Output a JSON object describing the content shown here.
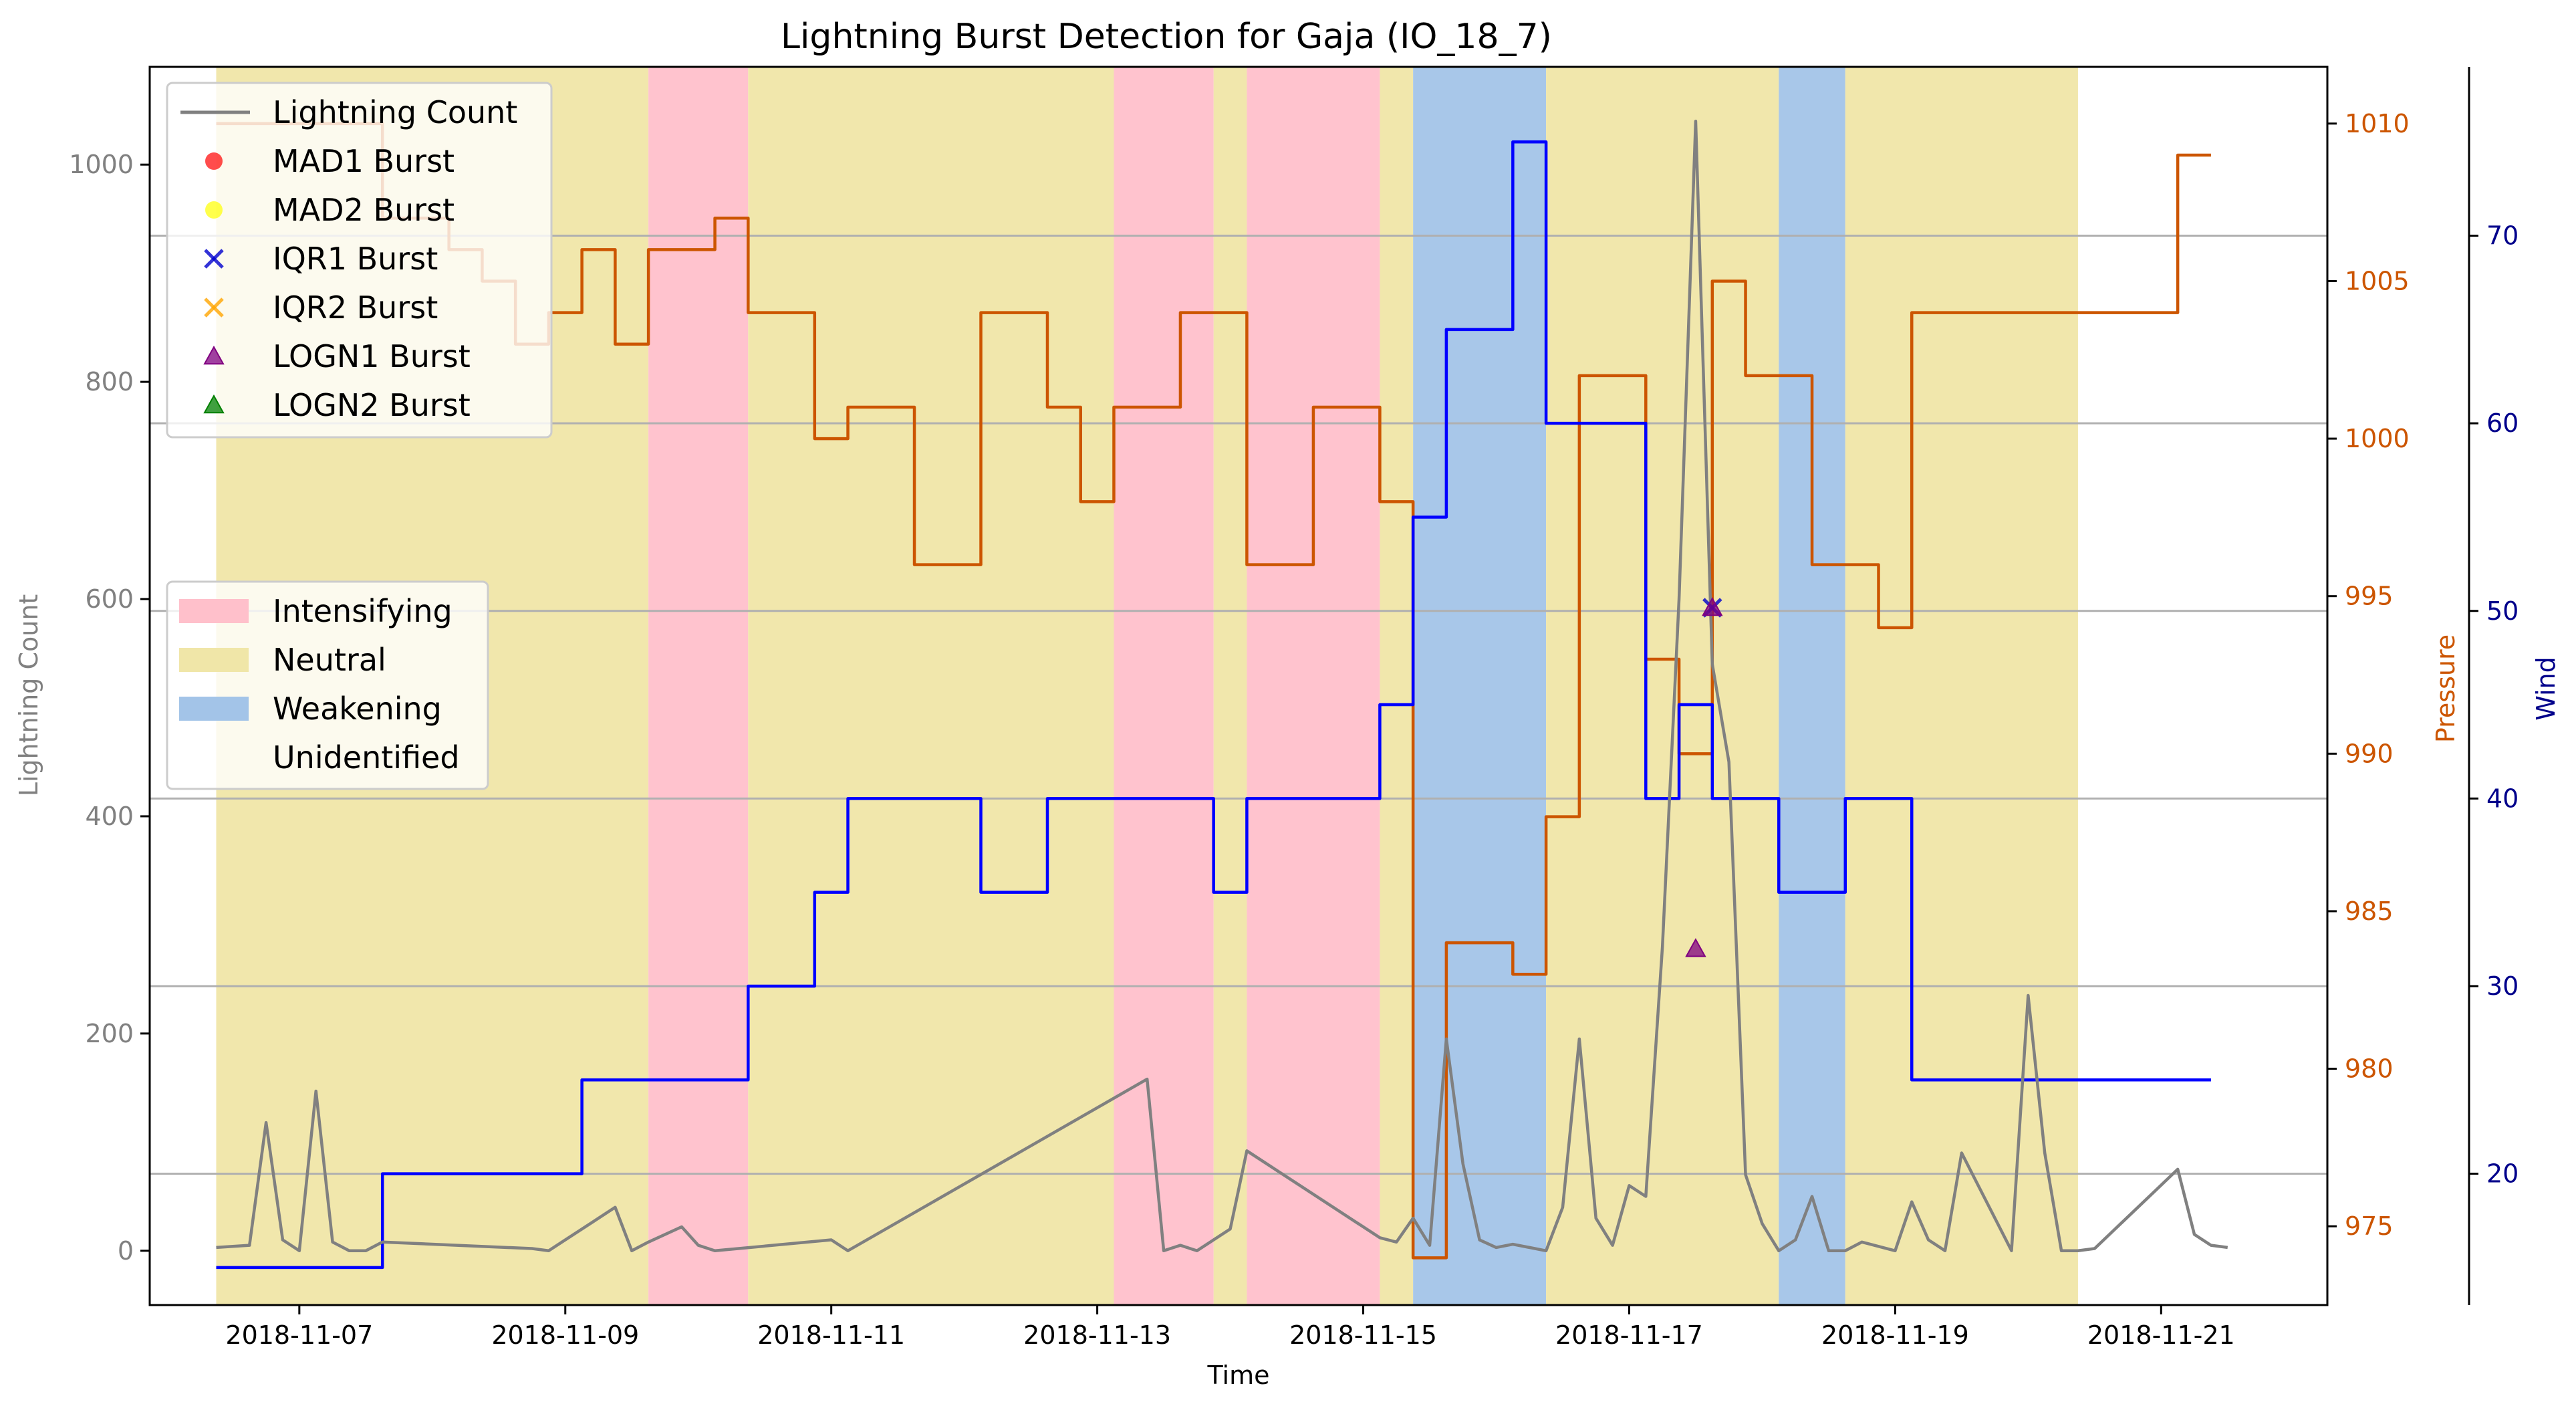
{
  "chart_data": {
    "type": "line",
    "title": "Lightning Burst Detection for Gaja (IO_18_7)",
    "xlabel": "Time",
    "ylabel_left": "Lightning Count",
    "ylabel_right1": "Pressure",
    "ylabel_right2": "Wind",
    "x_range": [
      "2018-11-05 21:00",
      "2018-11-22 06:00"
    ],
    "x_ticks": [
      "2018-11-07",
      "2018-11-09",
      "2018-11-11",
      "2018-11-13",
      "2018-11-15",
      "2018-11-17",
      "2018-11-19",
      "2018-11-21"
    ],
    "ylim_left": [
      -50,
      1090
    ],
    "yticks_left": [
      0,
      200,
      400,
      600,
      800,
      1000
    ],
    "ylim_pressure": [
      972.5,
      1011.8
    ],
    "yticks_pressure": [
      975,
      980,
      985,
      990,
      995,
      1000,
      1005,
      1010
    ],
    "ylim_wind": [
      13.0,
      79.0
    ],
    "yticks_wind": [
      20,
      30,
      40,
      50,
      60,
      70
    ],
    "grid": "horizontal lines at wind ticks",
    "colors": {
      "lightning": "#808080",
      "pressure": "#cc5500",
      "wind": "#0000ff",
      "wind_axis": "#00008b",
      "intensifying": "#ffc0cb",
      "neutral": "#f0e6a8",
      "weakening": "#a3c4e8",
      "mad1": "#ff0000",
      "mad2": "#ffff00",
      "iqr1": "#0000cd",
      "iqr2": "#ffa500",
      "logn1": "#800080",
      "logn2": "#008000"
    },
    "legend_upper": {
      "position": "upper-left",
      "entries": [
        "Lightning Count",
        "MAD1 Burst",
        "MAD2 Burst",
        "IQR1 Burst",
        "IQR2 Burst",
        "LOGN1 Burst",
        "LOGN2 Burst"
      ]
    },
    "legend_lower": {
      "position": "center-left",
      "entries": [
        "Intensifying",
        "Neutral",
        "Weakening",
        "Unidentified"
      ]
    },
    "phases": [
      {
        "phase": "Neutral",
        "start": "2018-11-06 09:00",
        "end": "2018-11-09 15:00"
      },
      {
        "phase": "Intensifying",
        "start": "2018-11-09 15:00",
        "end": "2018-11-10 09:00"
      },
      {
        "phase": "Neutral",
        "start": "2018-11-10 09:00",
        "end": "2018-11-13 03:00"
      },
      {
        "phase": "Intensifying",
        "start": "2018-11-13 03:00",
        "end": "2018-11-13 21:00"
      },
      {
        "phase": "Neutral",
        "start": "2018-11-13 21:00",
        "end": "2018-11-14 03:00"
      },
      {
        "phase": "Intensifying",
        "start": "2018-11-14 03:00",
        "end": "2018-11-15 03:00"
      },
      {
        "phase": "Neutral",
        "start": "2018-11-15 03:00",
        "end": "2018-11-15 09:00"
      },
      {
        "phase": "Weakening",
        "start": "2018-11-15 09:00",
        "end": "2018-11-16 09:00"
      },
      {
        "phase": "Neutral",
        "start": "2018-11-16 09:00",
        "end": "2018-11-18 03:00"
      },
      {
        "phase": "Weakening",
        "start": "2018-11-18 03:00",
        "end": "2018-11-18 15:00"
      },
      {
        "phase": "Neutral",
        "start": "2018-11-18 15:00",
        "end": "2018-11-20 09:00"
      }
    ],
    "series": [
      {
        "name": "Pressure",
        "axis": "pressure",
        "step": true,
        "x": [
          "2018-11-06 09:00",
          "2018-11-07 15:00",
          "2018-11-08 03:00",
          "2018-11-08 09:00",
          "2018-11-08 15:00",
          "2018-11-08 21:00",
          "2018-11-09 03:00",
          "2018-11-09 09:00",
          "2018-11-09 15:00",
          "2018-11-10 03:00",
          "2018-11-10 09:00",
          "2018-11-10 21:00",
          "2018-11-11 03:00",
          "2018-11-11 15:00",
          "2018-11-12 03:00",
          "2018-11-12 15:00",
          "2018-11-12 21:00",
          "2018-11-13 03:00",
          "2018-11-13 15:00",
          "2018-11-14 03:00",
          "2018-11-14 15:00",
          "2018-11-15 03:00",
          "2018-11-15 09:00",
          "2018-11-15 15:00",
          "2018-11-16 03:00",
          "2018-11-16 09:00",
          "2018-11-16 15:00",
          "2018-11-17 03:00",
          "2018-11-17 09:00",
          "2018-11-17 15:00",
          "2018-11-17 21:00",
          "2018-11-18 09:00",
          "2018-11-18 21:00",
          "2018-11-19 03:00",
          "2018-11-21 03:00"
        ],
        "y": [
          1010,
          1007,
          1006,
          1005,
          1003,
          1004,
          1006,
          1003,
          1006,
          1007,
          1004,
          1000,
          1001,
          996,
          1004,
          1001,
          998,
          1001,
          1004,
          996,
          1001,
          998,
          974,
          984,
          983,
          988,
          1002,
          993,
          990,
          1005,
          1002,
          996,
          994,
          1004,
          1009
        ],
        "end": "2018-11-21 09:00"
      },
      {
        "name": "Wind",
        "axis": "wind",
        "step": true,
        "x": [
          "2018-11-06 09:00",
          "2018-11-07 15:00",
          "2018-11-09 03:00",
          "2018-11-10 09:00",
          "2018-11-10 21:00",
          "2018-11-11 03:00",
          "2018-11-12 03:00",
          "2018-11-12 15:00",
          "2018-11-13 21:00",
          "2018-11-14 03:00",
          "2018-11-15 03:00",
          "2018-11-15 09:00",
          "2018-11-15 15:00",
          "2018-11-16 03:00",
          "2018-11-16 09:00",
          "2018-11-17 03:00",
          "2018-11-17 09:00",
          "2018-11-17 15:00",
          "2018-11-18 03:00",
          "2018-11-18 15:00",
          "2018-11-19 03:00"
        ],
        "y": [
          15,
          20,
          25,
          30,
          35,
          40,
          35,
          40,
          35,
          40,
          45,
          55,
          65,
          75,
          60,
          40,
          45,
          40,
          35,
          40,
          25
        ],
        "end": "2018-11-21 09:00"
      },
      {
        "name": "Lightning Count",
        "axis": "left",
        "step": false,
        "x": [
          "2018-11-06 09:00",
          "2018-11-06 15:00",
          "2018-11-06 18:00",
          "2018-11-06 21:00",
          "2018-11-07 00:00",
          "2018-11-07 03:00",
          "2018-11-07 06:00",
          "2018-11-07 09:00",
          "2018-11-07 12:00",
          "2018-11-07 15:00",
          "2018-11-08 18:00",
          "2018-11-08 21:00",
          "2018-11-09 00:00",
          "2018-11-09 09:00",
          "2018-11-09 12:00",
          "2018-11-09 15:00",
          "2018-11-09 21:00",
          "2018-11-10 00:00",
          "2018-11-10 03:00",
          "2018-11-11 00:00",
          "2018-11-11 03:00",
          "2018-11-13 09:00",
          "2018-11-13 12:00",
          "2018-11-13 15:00",
          "2018-11-13 18:00",
          "2018-11-14 00:00",
          "2018-11-14 03:00",
          "2018-11-15 03:00",
          "2018-11-15 06:00",
          "2018-11-15 09:00",
          "2018-11-15 12:00",
          "2018-11-15 15:00",
          "2018-11-15 18:00",
          "2018-11-15 21:00",
          "2018-11-16 00:00",
          "2018-11-16 03:00",
          "2018-11-16 09:00",
          "2018-11-16 12:00",
          "2018-11-16 15:00",
          "2018-11-16 18:00",
          "2018-11-16 21:00",
          "2018-11-17 00:00",
          "2018-11-17 03:00",
          "2018-11-17 06:00",
          "2018-11-17 09:00",
          "2018-11-17 12:00",
          "2018-11-17 15:00",
          "2018-11-17 18:00",
          "2018-11-17 21:00",
          "2018-11-18 00:00",
          "2018-11-18 03:00",
          "2018-11-18 06:00",
          "2018-11-18 09:00",
          "2018-11-18 12:00",
          "2018-11-18 15:00",
          "2018-11-18 18:00",
          "2018-11-19 00:00",
          "2018-11-19 03:00",
          "2018-11-19 06:00",
          "2018-11-19 09:00",
          "2018-11-19 12:00",
          "2018-11-19 18:00",
          "2018-11-19 21:00",
          "2018-11-20 00:00",
          "2018-11-20 03:00",
          "2018-11-20 06:00",
          "2018-11-20 09:00",
          "2018-11-20 12:00",
          "2018-11-21 03:00",
          "2018-11-21 06:00",
          "2018-11-21 09:00",
          "2018-11-21 12:00"
        ],
        "y": [
          3,
          5,
          118,
          10,
          0,
          147,
          8,
          0,
          0,
          8,
          2,
          0,
          10,
          40,
          0,
          8,
          22,
          5,
          0,
          10,
          0,
          158,
          0,
          5,
          0,
          20,
          92,
          12,
          8,
          30,
          5,
          195,
          80,
          10,
          3,
          6,
          0,
          40,
          195,
          30,
          5,
          60,
          50,
          280,
          600,
          1040,
          540,
          450,
          70,
          25,
          0,
          10,
          50,
          0,
          0,
          8,
          0,
          45,
          10,
          0,
          90,
          30,
          0,
          235,
          90,
          0,
          0,
          2,
          75,
          15,
          5,
          3
        ]
      }
    ],
    "markers": [
      {
        "type": "IQR1 Burst",
        "x": "2018-11-17 15:00",
        "y": 592
      },
      {
        "type": "LOGN1 Burst",
        "x": "2018-11-17 15:00",
        "y": 592
      },
      {
        "type": "LOGN1 Burst",
        "x": "2018-11-17 12:00",
        "y": 278
      }
    ]
  }
}
